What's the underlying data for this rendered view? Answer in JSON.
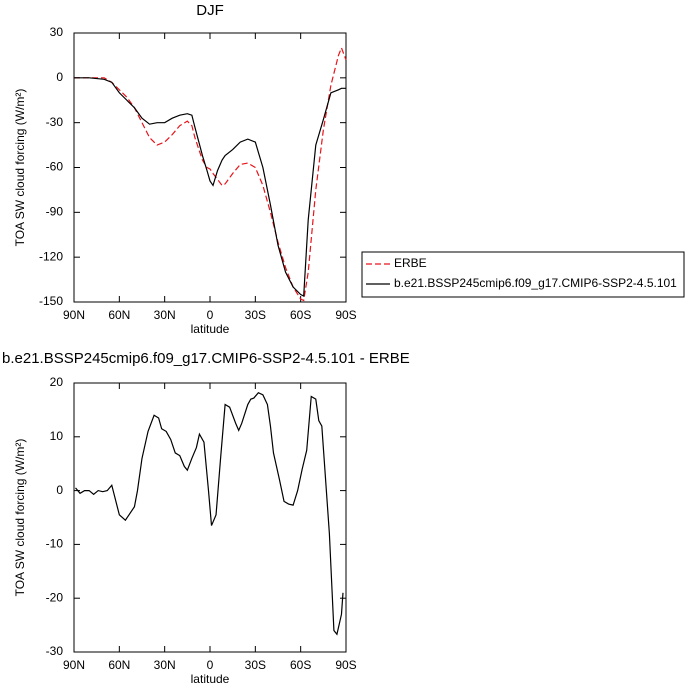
{
  "chart_data": [
    {
      "type": "line",
      "title": "DJF",
      "x_label": "latitude",
      "y_label": "TOA SW cloud forcing (W/m²)",
      "x": [
        90,
        80,
        70,
        65,
        60,
        55,
        50,
        45,
        40,
        35,
        30,
        25,
        20,
        15,
        12,
        10,
        5,
        2,
        0,
        -2,
        -5,
        -8,
        -10,
        -15,
        -20,
        -25,
        -30,
        -35,
        -40,
        -45,
        -50,
        -55,
        -60,
        -62,
        -65,
        -70,
        -75,
        -80,
        -85,
        -87,
        -90
      ],
      "series": [
        {
          "name": "ERBE",
          "color": "#e8141a",
          "dashed": true,
          "values": [
            0,
            0,
            0,
            -3,
            -8,
            -13,
            -20,
            -30,
            -40,
            -45,
            -43,
            -38,
            -32,
            -29,
            -32,
            -40,
            -55,
            -60,
            -61,
            -64,
            -68,
            -72,
            -71,
            -64,
            -58,
            -57,
            -60,
            -72,
            -90,
            -110,
            -127,
            -140,
            -148,
            -149,
            -130,
            -75,
            -35,
            -5,
            15,
            20,
            12
          ]
        },
        {
          "name": "b.e21.BSSP245cmip6.f09_g17.CMIP6-SSP2-4.5.101",
          "color": "#000000",
          "dashed": false,
          "values": [
            0,
            0,
            -1,
            -3,
            -10,
            -15,
            -20,
            -27,
            -31,
            -30,
            -30,
            -27,
            -25,
            -24,
            -25,
            -33,
            -52,
            -62,
            -69,
            -72,
            -62,
            -55,
            -52,
            -48,
            -43,
            -41,
            -43,
            -60,
            -85,
            -112,
            -130,
            -140,
            -145,
            -146,
            -95,
            -45,
            -28,
            -10,
            -8,
            -7,
            -7
          ]
        }
      ],
      "xlim": [
        90,
        -90
      ],
      "xticks": [
        {
          "value": 90,
          "label": "90N"
        },
        {
          "value": 60,
          "label": "60N"
        },
        {
          "value": 30,
          "label": "30N"
        },
        0,
        {
          "value": -30,
          "label": "30S"
        },
        {
          "value": -60,
          "label": "60S"
        },
        {
          "value": -90,
          "label": "90S"
        }
      ],
      "ylim": [
        -150,
        30
      ],
      "yticks": [
        30,
        0,
        -30,
        -60,
        -90,
        -120,
        -150
      ],
      "legend": "right"
    },
    {
      "type": "line",
      "title": "b.e21.BSSP245cmip6.f09_g17.CMIP6-SSP2-4.5.101 - ERBE",
      "x_label": "latitude",
      "y_label": "TOA SW cloud forcing (W/m²)",
      "x": [
        89,
        86,
        83,
        80,
        77,
        74,
        71,
        68,
        65,
        60,
        56,
        50,
        48,
        45,
        41,
        37,
        34,
        32,
        29,
        26,
        23,
        20,
        17,
        15,
        12,
        9,
        7,
        4,
        1,
        -1,
        -4,
        -7,
        -10,
        -13,
        -17,
        -19,
        -21,
        -25,
        -27,
        -29,
        -32,
        -35,
        -38,
        -40,
        -42,
        -46,
        -49,
        -52,
        -55,
        -58,
        -61,
        -64,
        -67,
        -70,
        -72,
        -74,
        -77,
        -79,
        -82,
        -84,
        -87,
        -88
      ],
      "values": [
        0.5,
        -0.5,
        0,
        0,
        -0.7,
        0,
        -0.2,
        0,
        1,
        -4.5,
        -5.5,
        -3,
        0,
        6,
        11,
        14,
        13.5,
        11.5,
        11,
        9.5,
        7,
        6.5,
        4.5,
        3.8,
        6,
        8,
        10.5,
        9,
        0,
        -6.5,
        -4.5,
        6,
        16,
        15.5,
        12.5,
        11.2,
        12.5,
        16,
        17,
        17.2,
        18.2,
        17.8,
        16,
        12,
        7,
        2,
        -2,
        -2.5,
        -2.7,
        0,
        4,
        7.5,
        17.5,
        17,
        13,
        12,
        0,
        -8,
        -26,
        -26.7,
        -23,
        -19
      ],
      "color": "#000000",
      "xlim": [
        90,
        -90
      ],
      "xticks": [
        {
          "value": 90,
          "label": "90N"
        },
        {
          "value": 60,
          "label": "60N"
        },
        {
          "value": 30,
          "label": "30N"
        },
        0,
        {
          "value": -30,
          "label": "30S"
        },
        {
          "value": -60,
          "label": "60S"
        },
        {
          "value": -90,
          "label": "90S"
        }
      ],
      "ylim": [
        -30,
        20
      ],
      "yticks": [
        20,
        10,
        0,
        -10,
        -20,
        -30
      ]
    }
  ]
}
